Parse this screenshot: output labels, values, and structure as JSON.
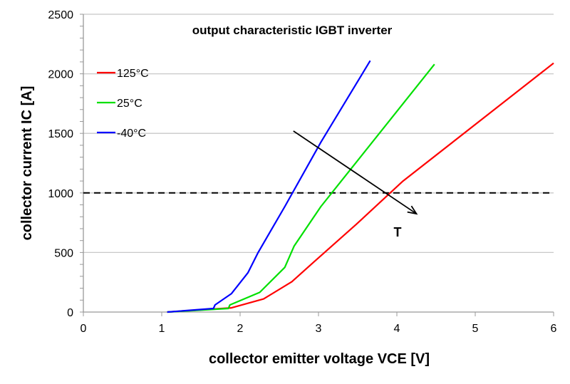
{
  "chart_data": {
    "type": "line",
    "title": "output characteristic IGBT inverter",
    "xlabel": "collector emitter voltage VCE [V]",
    "ylabel": "collector current IC [A]",
    "xlim": [
      0,
      6
    ],
    "ylim": [
      0,
      2500
    ],
    "xticks": [
      "0",
      "1",
      "2",
      "3",
      "4",
      "5",
      "6"
    ],
    "yticks": [
      "0",
      "500",
      "1000",
      "1500",
      "2000",
      "2500"
    ],
    "grid": true,
    "legend_position": "top-left",
    "series": [
      {
        "name": "125°C",
        "color": "#ff0000",
        "x": [
          1.07,
          1.89,
          2.3,
          2.66,
          2.94,
          3.48,
          4.07,
          6.0
        ],
        "y": [
          0,
          35,
          110,
          255,
          420,
          735,
          1095,
          2090
        ]
      },
      {
        "name": "25°C",
        "color": "#00e000",
        "x": [
          1.07,
          1.85,
          1.87,
          2.25,
          2.57,
          2.69,
          3.03,
          4.48
        ],
        "y": [
          0,
          30,
          60,
          165,
          375,
          555,
          885,
          2080
        ]
      },
      {
        "name": "-40°C",
        "color": "#0000ff",
        "x": [
          1.07,
          1.66,
          1.68,
          1.89,
          2.1,
          2.23,
          2.57,
          3.03,
          3.66
        ],
        "y": [
          0,
          30,
          60,
          155,
          330,
          500,
          885,
          1425,
          2110
        ]
      }
    ],
    "reference_line": {
      "y": 1000,
      "style": "dashed",
      "color": "#000000"
    },
    "annotation": {
      "text": "T",
      "arrow_from": [
        2.68,
        1520
      ],
      "arrow_to": [
        4.25,
        825
      ]
    }
  }
}
